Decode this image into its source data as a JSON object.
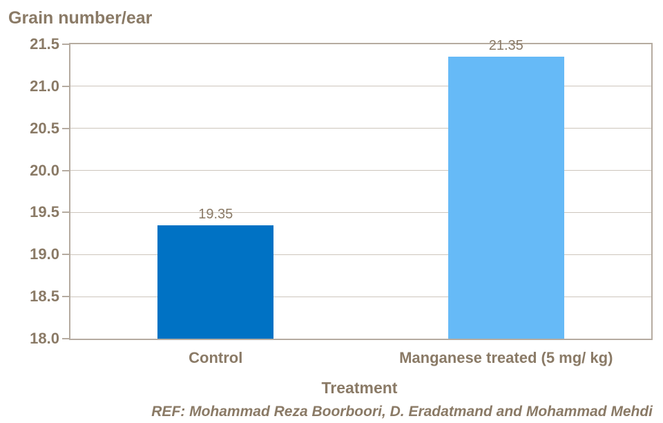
{
  "chart_data": {
    "type": "bar",
    "title": "Grain number/ear",
    "categories": [
      "Control",
      "Manganese treated (5 mg/ kg)"
    ],
    "values": [
      19.35,
      21.35
    ],
    "data_labels": [
      "19.35",
      "21.35"
    ],
    "bar_colors": [
      "#0072c4",
      "#66baf7"
    ],
    "xlabel": "Treatment",
    "ylabel": "Grain number/ear",
    "ylim": [
      18.0,
      21.5
    ],
    "ytick_step": 0.5,
    "ytick_labels": [
      "18.0",
      "18.5",
      "19.0",
      "19.5",
      "20.0",
      "20.5",
      "21.0",
      "21.5"
    ],
    "grid": true,
    "legend": false
  },
  "footer": {
    "ref_text": "REF: Mohammad Reza Boorboori, D. Eradatmand and Mohammad Mehdi"
  },
  "colors": {
    "text_brown": "#8a7a66",
    "axis_border": "#b5aba0",
    "gridline": "#cdc5bc",
    "bar_control": "#0072c4",
    "bar_treated": "#66baf7",
    "background": "#ffffff"
  }
}
